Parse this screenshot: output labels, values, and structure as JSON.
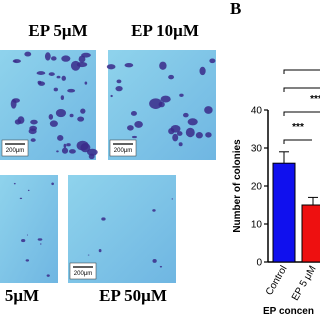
{
  "panel_a": {
    "images": [
      {
        "label": "EP 5μM",
        "scale_label": "200μm"
      },
      {
        "label": "EP 10μM",
        "scale_label": "200μm"
      },
      {
        "label": "5μM"
      },
      {
        "label": "EP 50μM",
        "scale_label": "200μm"
      }
    ]
  },
  "chart_data": {
    "type": "bar",
    "panel_label": "B",
    "y_label": "Number of colonies",
    "x_label": "EP concen",
    "categories": [
      "Control",
      "EP 5 μM"
    ],
    "values": [
      26,
      15
    ],
    "errors": [
      3,
      2
    ],
    "colors": [
      "#1010ee",
      "#ee1010"
    ],
    "ylim": [
      0,
      40
    ],
    "yticks": [
      0,
      10,
      20,
      30,
      40
    ],
    "annotations": [
      "***",
      "***"
    ]
  }
}
